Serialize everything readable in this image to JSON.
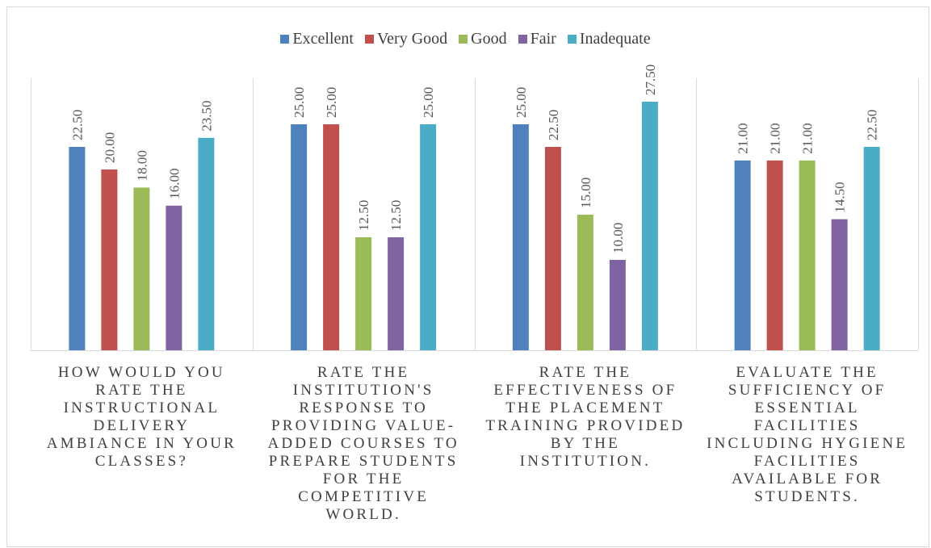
{
  "chart_data": {
    "type": "bar",
    "title": "",
    "xlabel": "",
    "ylabel": "",
    "ylim": [
      0,
      30
    ],
    "grid": false,
    "legend_position": "top",
    "categories": [
      "HOW WOULD YOU RATE THE INSTRUCTIONAL DELIVERY AMBIANCE IN YOUR CLASSES?",
      "RATE THE INSTITUTION'S RESPONSE TO PROVIDING VALUE-ADDED COURSES TO PREPARE STUDENTS FOR THE COMPETITIVE WORLD.",
      "RATE THE EFFECTIVENESS OF THE PLACEMENT TRAINING PROVIDED BY THE INSTITUTION.",
      "EVALUATE THE SUFFICIENCY OF ESSENTIAL FACILITIES INCLUDING HYGIENE FACILITIES AVAILABLE FOR STUDENTS."
    ],
    "category_lines": [
      [
        "HOW WOULD YOU",
        "RATE THE",
        "INSTRUCTIONAL",
        "DELIVERY",
        "AMBIANCE IN YOUR",
        "CLASSES?"
      ],
      [
        "RATE THE",
        "INSTITUTION'S",
        "RESPONSE TO",
        "PROVIDING VALUE-",
        "ADDED COURSES TO",
        "PREPARE STUDENTS",
        "FOR THE",
        "COMPETITIVE",
        "WORLD."
      ],
      [
        "RATE THE",
        "EFFECTIVENESS OF",
        "THE PLACEMENT",
        "TRAINING PROVIDED",
        "BY THE",
        "INSTITUTION."
      ],
      [
        "EVALUATE THE",
        "SUFFICIENCY OF",
        "ESSENTIAL",
        "FACILITIES",
        "INCLUDING HYGIENE",
        "FACILITIES",
        "AVAILABLE FOR",
        "STUDENTS."
      ]
    ],
    "series": [
      {
        "name": "Excellent",
        "color": "#4f81bd",
        "values": [
          22.5,
          25.0,
          25.0,
          21.0
        ],
        "labels": [
          "22.50",
          "25.00",
          "25.00",
          "21.00"
        ]
      },
      {
        "name": "Very Good",
        "color": "#c0504d",
        "values": [
          20.0,
          25.0,
          22.5,
          21.0
        ],
        "labels": [
          "20.00",
          "25.00",
          "22.50",
          "21.00"
        ]
      },
      {
        "name": "Good",
        "color": "#9bbb59",
        "values": [
          18.0,
          12.5,
          15.0,
          21.0
        ],
        "labels": [
          "18.00",
          "12.50",
          "15.00",
          "21.00"
        ]
      },
      {
        "name": "Fair",
        "color": "#8064a2",
        "values": [
          16.0,
          12.5,
          10.0,
          14.5
        ],
        "labels": [
          "16.00",
          "12.50",
          "10.00",
          "14.50"
        ]
      },
      {
        "name": "Inadequate",
        "color": "#4bacc6",
        "values": [
          23.5,
          25.0,
          27.5,
          22.5
        ],
        "labels": [
          "23.50",
          "25.00",
          "27.50",
          "22.50"
        ]
      }
    ]
  }
}
